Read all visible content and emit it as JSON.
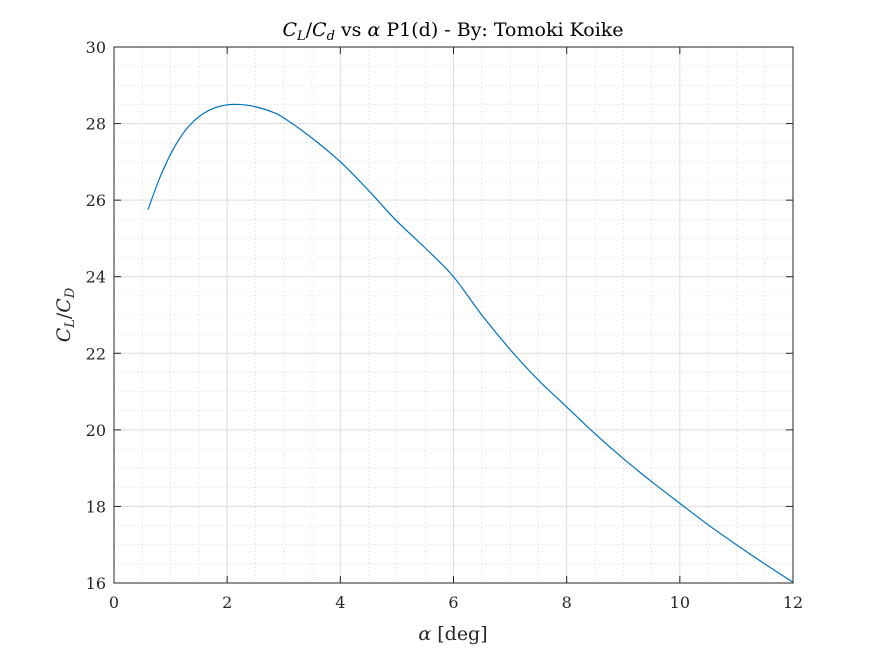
{
  "chart_data": {
    "type": "line",
    "title": {
      "ratio_numerator": "C",
      "ratio_numerator_sub": "L",
      "ratio_denominator": "C",
      "ratio_denominator_sub": "d",
      "vs_text": " vs ",
      "alpha_symbol": "α",
      "suffix": " P1(d) - By: Tomoki Koike"
    },
    "xlabel": {
      "symbol": "α",
      "unit": " [deg]"
    },
    "ylabel": {
      "numerator": "C",
      "numerator_sub": "L",
      "denominator": "C",
      "denominator_sub": "D"
    },
    "xlim": [
      0,
      12
    ],
    "ylim": [
      16,
      30
    ],
    "xticks": [
      0,
      2,
      4,
      6,
      8,
      10,
      12
    ],
    "yticks": [
      16,
      18,
      20,
      22,
      24,
      26,
      28,
      30
    ],
    "x_minor_step": 0.5,
    "y_minor_step": 0.5,
    "grid": true,
    "minor_grid": true,
    "series": [
      {
        "color": "#0072BD",
        "x": [
          0.6,
          0.8,
          1.0,
          1.2,
          1.4,
          1.6,
          1.8,
          2.0,
          2.2,
          2.4,
          2.6,
          2.8,
          3.0,
          3.5,
          4.0,
          4.5,
          5.0,
          5.5,
          6.0,
          6.5,
          7.0,
          7.5,
          8.0,
          8.5,
          9.0,
          9.5,
          10.0,
          10.5,
          11.0,
          11.5,
          12.0
        ],
        "y": [
          25.75,
          26.55,
          27.2,
          27.7,
          28.05,
          28.28,
          28.42,
          28.49,
          28.5,
          28.47,
          28.4,
          28.3,
          28.15,
          27.62,
          27.0,
          26.25,
          25.45,
          24.75,
          24.0,
          23.0,
          22.1,
          21.3,
          20.6,
          19.9,
          19.25,
          18.65,
          18.08,
          17.52,
          17.0,
          16.5,
          16.02
        ]
      }
    ]
  }
}
